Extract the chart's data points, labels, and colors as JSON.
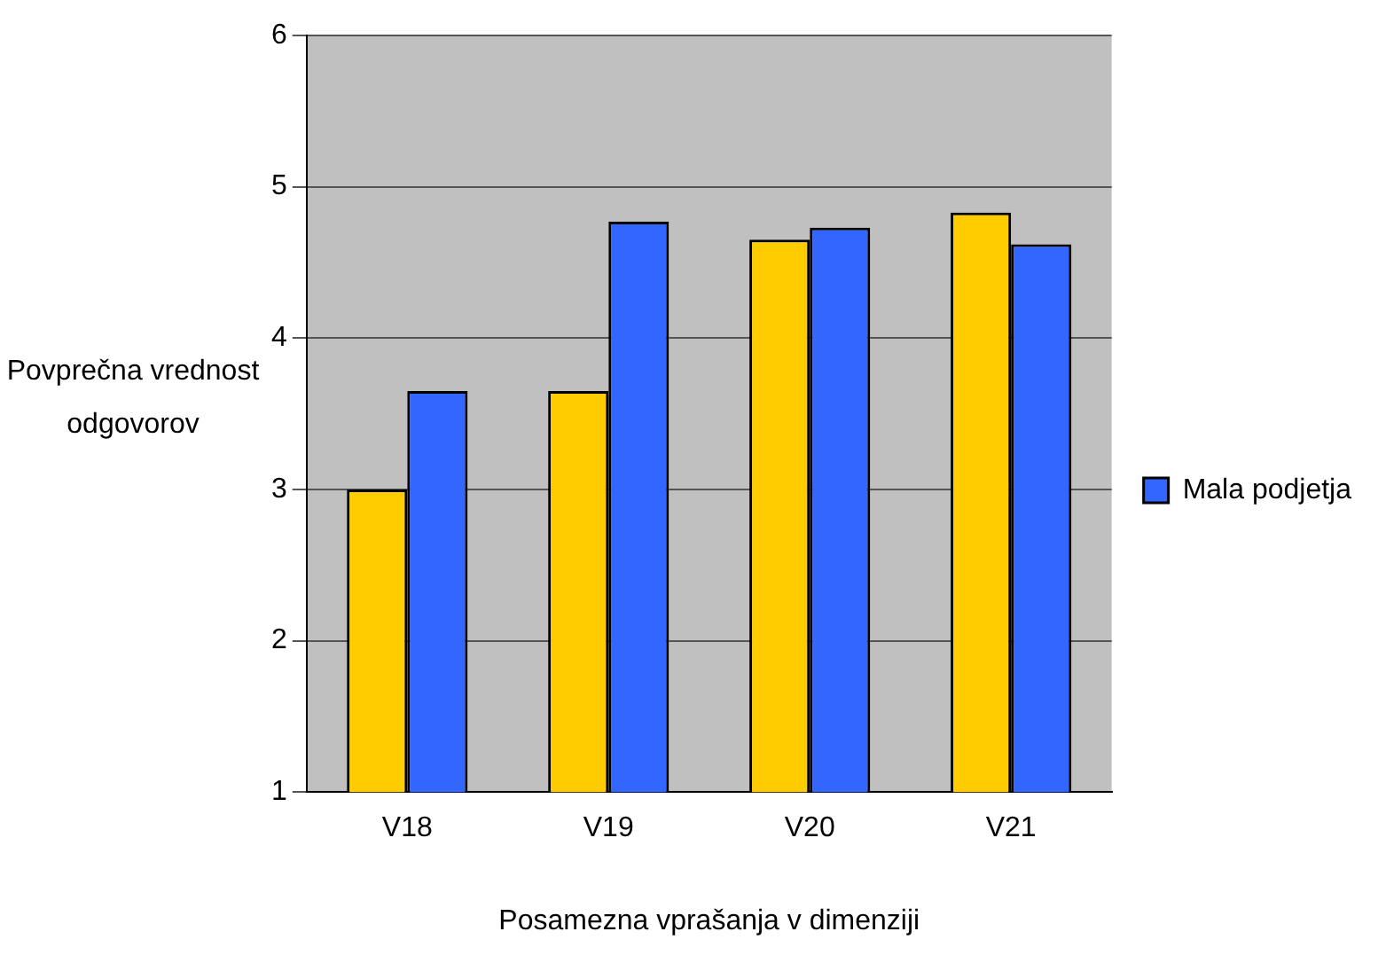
{
  "chart_data": {
    "type": "bar",
    "xlabel": "Posamezna vprašanja v dimenziji",
    "ylabel": "Povprečna vrednost odgovorov",
    "categories": [
      "V18",
      "V19",
      "V20",
      "V21"
    ],
    "series": [
      {
        "color": "#ffcc00",
        "values": [
          3.0,
          3.65,
          4.65,
          4.83
        ]
      },
      {
        "name": "Mala podjetja",
        "color": "#3366ff",
        "values": [
          3.65,
          4.77,
          4.73,
          4.62
        ]
      }
    ],
    "ylim": [
      1,
      6
    ],
    "yticks": [
      1,
      2,
      3,
      4,
      5,
      6
    ],
    "grid": "y",
    "legend": "right"
  }
}
